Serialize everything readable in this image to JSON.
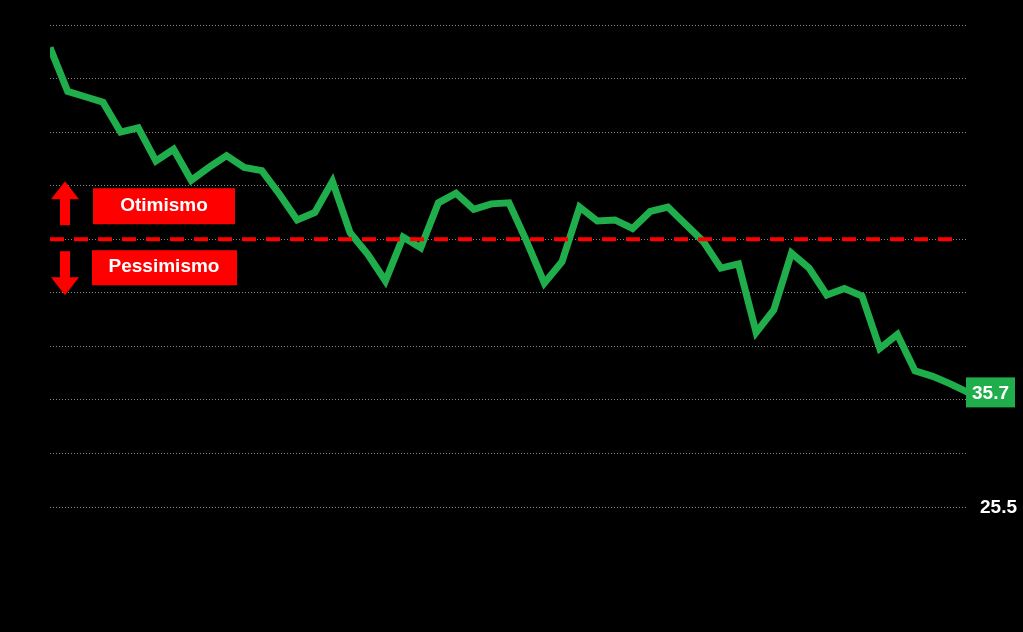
{
  "chart_data": {
    "type": "line",
    "categories": [
      null,
      null,
      null,
      null,
      null,
      null,
      null,
      null,
      null,
      null,
      null,
      null,
      null,
      null,
      null,
      null,
      null,
      null,
      null,
      null,
      null,
      null,
      null,
      null,
      null,
      null,
      null,
      null,
      null,
      null,
      null,
      null,
      null,
      null,
      null,
      null,
      null,
      null,
      null,
      null,
      null,
      null,
      null,
      null,
      null,
      null,
      null,
      null,
      null,
      null,
      null,
      null,
      null
    ],
    "series": [
      {
        "color": "#1fae4b",
        "values": [
          67.9,
          63.8,
          63.3,
          62.8,
          60.0,
          60.4,
          57.3,
          58.4,
          55.5,
          56.7,
          57.8,
          56.7,
          56.4,
          54.2,
          51.8,
          52.5,
          55.4,
          50.6,
          48.6,
          46.1,
          50.2,
          49.2,
          53.4,
          54.3,
          52.8,
          53.3,
          53.4,
          49.8,
          45.9,
          47.9,
          53.0,
          51.7,
          51.8,
          51.0,
          52.6,
          53.0,
          51.4,
          49.8,
          47.3,
          47.7,
          41.3,
          43.4,
          48.7,
          47.3,
          44.8,
          45.4,
          44.7,
          39.8,
          41.1,
          37.7,
          37.2,
          36.5,
          35.7
        ]
      }
    ],
    "ylim": [
      25,
      70
    ],
    "yticks": [
      25,
      30,
      35,
      40,
      45,
      50,
      55,
      60,
      65,
      70
    ],
    "grid": true,
    "tick_labels": false,
    "reference": {
      "value": 50,
      "color": "#ff0000",
      "above": "Otimismo",
      "below": "Pessimismo"
    },
    "annotations": [
      {
        "text": "35.7",
        "y": 35.7,
        "color": "#1fae4b"
      },
      {
        "text": "25.5",
        "y": 25.5
      }
    ]
  }
}
